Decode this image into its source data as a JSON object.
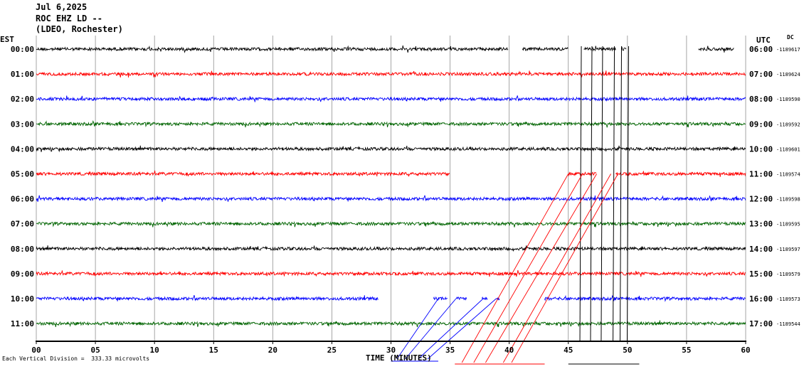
{
  "header": {
    "date": "Jul 6,2025",
    "station": "ROC EHZ LD --",
    "network": "(LDEO, Rochester)"
  },
  "left_timezone": "EST",
  "right_timezone": "UTC",
  "dc_label": "DC",
  "footnote": "Each Vertical Division =  333.33 microvolts",
  "chart_data": {
    "type": "line",
    "title": "",
    "xlabel": "TIME (MINUTES)",
    "xlim": [
      0,
      60
    ],
    "x_ticks": [
      "00",
      "05",
      "10",
      "15",
      "20",
      "25",
      "30",
      "35",
      "40",
      "45",
      "50",
      "55",
      "60"
    ],
    "trace_colors": [
      "#000000",
      "#ff0000",
      "#0000ff",
      "#006400"
    ],
    "rows": [
      {
        "est": "00:00",
        "utc": "06:00",
        "dc": "-1189617",
        "segments": [
          [
            0,
            39.9
          ],
          [
            41.1,
            45
          ],
          [
            46.3,
            49
          ],
          [
            49.5,
            49.9
          ],
          [
            56,
            59
          ]
        ]
      },
      {
        "est": "01:00",
        "utc": "07:00",
        "dc": "-1189624",
        "segments": [
          [
            0,
            60
          ]
        ]
      },
      {
        "est": "02:00",
        "utc": "08:00",
        "dc": "-1189590",
        "segments": [
          [
            0,
            60
          ]
        ]
      },
      {
        "est": "03:00",
        "utc": "09:00",
        "dc": "-1189592",
        "segments": [
          [
            0,
            60
          ]
        ]
      },
      {
        "est": "04:00",
        "utc": "10:00",
        "dc": "-1189601",
        "segments": [
          [
            0,
            60
          ]
        ]
      },
      {
        "est": "05:00",
        "utc": "11:00",
        "dc": "-1189574",
        "segments": [
          [
            0,
            35
          ],
          [
            45,
            47.4
          ],
          [
            49,
            60
          ]
        ]
      },
      {
        "est": "06:00",
        "utc": "12:00",
        "dc": "-1189598",
        "segments": [
          [
            0,
            60
          ]
        ]
      },
      {
        "est": "07:00",
        "utc": "13:00",
        "dc": "-1189595",
        "segments": [
          [
            0,
            60
          ]
        ]
      },
      {
        "est": "08:00",
        "utc": "14:00",
        "dc": "-1189597",
        "segments": [
          [
            0,
            60
          ]
        ]
      },
      {
        "est": "09:00",
        "utc": "15:00",
        "dc": "-1189579",
        "segments": [
          [
            0,
            60
          ]
        ]
      },
      {
        "est": "10:00",
        "utc": "16:00",
        "dc": "-1189573",
        "segments": [
          [
            0,
            28.9
          ],
          [
            33.6,
            34.8
          ],
          [
            35.5,
            36.4
          ],
          [
            37.7,
            38.2
          ],
          [
            38.9,
            39.2
          ],
          [
            43,
            60
          ]
        ]
      },
      {
        "est": "11:00",
        "utc": "17:00",
        "dc": "-1189544",
        "segments": [
          [
            0,
            60
          ]
        ]
      }
    ]
  }
}
